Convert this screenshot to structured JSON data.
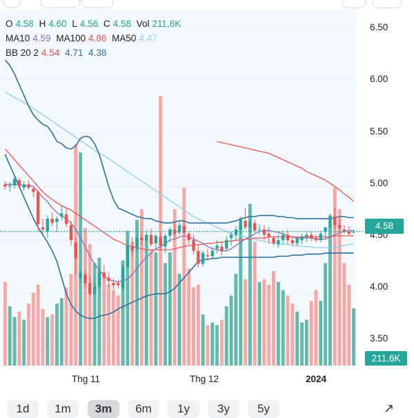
{
  "header": {
    "legend_ohlc": {
      "o_label": "O",
      "o_value": "4.58",
      "h_label": "H",
      "h_value": "4.60",
      "l_label": "L",
      "l_value": "4.56",
      "c_label": "C",
      "c_value": "4.58",
      "vol_label": "Vol",
      "vol_value": "211,6K"
    },
    "legend_ma": {
      "ma10_label": "MA10",
      "ma10_value": "4.59",
      "ma100_label": "MA100",
      "ma100_value": "4.86",
      "ma50_label": "MA50",
      "ma50_value": "4.47"
    },
    "legend_bb": {
      "bb_label": "BB 20 2",
      "bb_mid": "4.54",
      "bb_upper": "4.71",
      "bb_lower": "4.38"
    }
  },
  "badges": {
    "last_price": "4.58",
    "last_volume": "211.6K"
  },
  "range_buttons": [
    "1d",
    "1m",
    "3m",
    "6m",
    "1y",
    "3y",
    "5y"
  ],
  "selected_range": "3m",
  "icons": [
    "expand-icon"
  ],
  "colors": {
    "up": "#26a69a",
    "down": "#ef5350",
    "vol_up": "#5bb5a8",
    "vol_down": "#f4a3a0",
    "ma10": "#8e6bbf",
    "ma100": "#ef5350",
    "ma50": "#8fd0ec",
    "bb": "#2f6f9f"
  },
  "chart_data": {
    "type": "candlestick",
    "y_ticks": [
      "6.50",
      "6.00",
      "5.50",
      "5.00",
      "4.50",
      "4.00",
      "3.50"
    ],
    "ylim": [
      3.33,
      6.65
    ],
    "x_ticks": [
      {
        "label": "Thg 11",
        "index": 17
      },
      {
        "label": "Thg 12",
        "index": 44
      },
      {
        "label": "2024",
        "index": 70
      }
    ],
    "last_price": 4.58,
    "ohlc": [
      [
        5.02,
        5.05,
        4.97,
        5.0
      ],
      [
        5.0,
        5.04,
        4.95,
        5.01
      ],
      [
        5.01,
        5.1,
        4.98,
        5.07
      ],
      [
        5.06,
        5.08,
        4.98,
        5.0
      ],
      [
        4.99,
        5.05,
        4.96,
        5.02
      ],
      [
        5.02,
        5.06,
        4.97,
        4.99
      ],
      [
        4.98,
        5.0,
        4.9,
        4.95
      ],
      [
        4.95,
        4.97,
        4.58,
        4.65
      ],
      [
        4.62,
        4.7,
        4.55,
        4.6
      ],
      [
        4.58,
        4.73,
        4.52,
        4.7
      ],
      [
        4.7,
        4.76,
        4.63,
        4.66
      ],
      [
        4.67,
        4.72,
        4.58,
        4.7
      ],
      [
        4.72,
        4.82,
        4.68,
        4.75
      ],
      [
        4.74,
        4.8,
        4.62,
        4.65
      ],
      [
        4.64,
        4.68,
        4.45,
        4.5
      ],
      [
        4.48,
        4.52,
        4.18,
        4.33
      ],
      [
        4.15,
        4.22,
        4.1,
        4.2
      ],
      [
        4.18,
        4.22,
        4.05,
        4.1
      ],
      [
        4.1,
        4.16,
        3.98,
        4.0
      ],
      [
        4.0,
        4.1,
        3.98,
        4.07
      ],
      [
        4.07,
        4.23,
        4.04,
        4.2
      ],
      [
        4.2,
        4.27,
        4.13,
        4.15
      ],
      [
        4.15,
        4.2,
        4.07,
        4.12
      ],
      [
        4.1,
        4.14,
        4.04,
        4.08
      ],
      [
        4.1,
        4.13,
        4.05,
        4.08
      ],
      [
        4.05,
        4.27,
        4.03,
        4.25
      ],
      [
        4.25,
        4.5,
        4.22,
        4.45
      ],
      [
        4.44,
        4.53,
        4.35,
        4.4
      ],
      [
        4.42,
        4.55,
        4.4,
        4.52
      ],
      [
        4.52,
        4.57,
        4.45,
        4.5
      ],
      [
        4.5,
        4.6,
        4.45,
        4.55
      ],
      [
        4.55,
        4.61,
        4.44,
        4.46
      ],
      [
        4.47,
        4.56,
        4.42,
        4.54
      ],
      [
        4.53,
        4.57,
        4.42,
        4.45
      ],
      [
        4.44,
        4.56,
        4.38,
        4.54
      ],
      [
        4.54,
        4.62,
        4.48,
        4.6
      ],
      [
        4.6,
        4.66,
        4.53,
        4.56
      ],
      [
        4.57,
        4.67,
        4.55,
        4.64
      ],
      [
        4.63,
        4.67,
        4.55,
        4.57
      ],
      [
        4.56,
        4.58,
        4.46,
        4.5
      ],
      [
        4.5,
        4.55,
        4.37,
        4.4
      ],
      [
        4.4,
        4.46,
        4.24,
        4.28
      ],
      [
        4.28,
        4.4,
        4.25,
        4.38
      ],
      [
        4.36,
        4.42,
        4.31,
        4.35
      ],
      [
        4.35,
        4.44,
        4.32,
        4.4
      ],
      [
        4.42,
        4.5,
        4.38,
        4.45
      ],
      [
        4.44,
        4.49,
        4.36,
        4.4
      ],
      [
        4.42,
        4.54,
        4.4,
        4.5
      ],
      [
        4.52,
        4.58,
        4.45,
        4.55
      ],
      [
        4.55,
        4.63,
        4.5,
        4.6
      ],
      [
        4.6,
        4.72,
        4.56,
        4.7
      ],
      [
        4.68,
        4.8,
        4.6,
        4.62
      ],
      [
        4.62,
        4.7,
        4.57,
        4.67
      ],
      [
        4.66,
        4.69,
        4.57,
        4.59
      ],
      [
        4.6,
        4.65,
        4.55,
        4.6
      ],
      [
        4.6,
        4.64,
        4.5,
        4.55
      ],
      [
        4.56,
        4.62,
        4.47,
        4.53
      ],
      [
        4.52,
        4.54,
        4.45,
        4.47
      ],
      [
        4.46,
        4.55,
        4.43,
        4.5
      ],
      [
        4.5,
        4.58,
        4.46,
        4.55
      ],
      [
        4.55,
        4.6,
        4.46,
        4.5
      ],
      [
        4.5,
        4.54,
        4.45,
        4.47
      ],
      [
        4.47,
        4.53,
        4.44,
        4.52
      ],
      [
        4.5,
        4.56,
        4.46,
        4.53
      ],
      [
        4.53,
        4.58,
        4.48,
        4.55
      ],
      [
        4.55,
        4.58,
        4.49,
        4.52
      ],
      [
        4.52,
        4.55,
        4.48,
        4.5
      ],
      [
        4.5,
        4.58,
        4.48,
        4.56
      ],
      [
        4.58,
        4.62,
        4.52,
        4.62
      ],
      [
        4.62,
        4.75,
        4.6,
        4.73
      ],
      [
        4.72,
        4.8,
        4.6,
        4.64
      ],
      [
        4.64,
        4.7,
        4.58,
        4.61
      ],
      [
        4.6,
        4.64,
        4.56,
        4.58
      ],
      [
        4.58,
        4.63,
        4.55,
        4.56
      ],
      [
        4.58,
        4.6,
        4.56,
        4.58
      ]
    ],
    "volume_max_k": 1100,
    "volume_k": [
      310,
      220,
      180,
      200,
      170,
      230,
      270,
      300,
      210,
      180,
      190,
      230,
      250,
      290,
      340,
      820,
      790,
      510,
      450,
      380,
      400,
      340,
      300,
      280,
      260,
      390,
      500,
      460,
      540,
      580,
      470,
      430,
      420,
      1000,
      380,
      420,
      580,
      340,
      660,
      360,
      290,
      300,
      190,
      150,
      160,
      150,
      170,
      220,
      260,
      340,
      520,
      320,
      600,
      460,
      310,
      320,
      300,
      350,
      310,
      280,
      260,
      230,
      200,
      160,
      170,
      240,
      280,
      240,
      380,
      520,
      660,
      580,
      380,
      300,
      212
    ],
    "series": [
      {
        "name": "MA10",
        "values": [
          5.02,
          5.02,
          5.02,
          5.02,
          5.01,
          5.01,
          5.0,
          4.95,
          4.9,
          4.86,
          4.8,
          4.76,
          4.72,
          4.7,
          4.66,
          4.6,
          4.52,
          4.44,
          4.35,
          4.28,
          4.22,
          4.17,
          4.13,
          4.12,
          4.11,
          4.12,
          4.14,
          4.18,
          4.24,
          4.29,
          4.34,
          4.38,
          4.42,
          4.44,
          4.47,
          4.5,
          4.51,
          4.53,
          4.54,
          4.53,
          4.51,
          4.49,
          4.47,
          4.44,
          4.42,
          4.41,
          4.4,
          4.4,
          4.42,
          4.45,
          4.48,
          4.51,
          4.53,
          4.56,
          4.58,
          4.59,
          4.59,
          4.58,
          4.57,
          4.56,
          4.54,
          4.53,
          4.52,
          4.52,
          4.52,
          4.52,
          4.51,
          4.51,
          4.51,
          4.53,
          4.55,
          4.57,
          4.58,
          4.59,
          4.59
        ]
      },
      {
        "name": "MA100",
        "values": [
          null,
          null,
          null,
          null,
          null,
          null,
          null,
          null,
          null,
          null,
          null,
          null,
          null,
          null,
          null,
          null,
          null,
          null,
          null,
          null,
          null,
          null,
          null,
          null,
          null,
          null,
          null,
          null,
          null,
          null,
          null,
          null,
          null,
          null,
          null,
          null,
          null,
          null,
          null,
          null,
          null,
          null,
          null,
          null,
          null,
          5.42,
          5.41,
          5.4,
          5.39,
          5.38,
          5.37,
          5.36,
          5.35,
          5.34,
          5.33,
          5.32,
          5.31,
          5.29,
          5.27,
          5.25,
          5.23,
          5.21,
          5.19,
          5.17,
          5.14,
          5.12,
          5.1,
          5.08,
          5.06,
          5.03,
          5.0,
          4.97,
          4.93,
          4.9,
          4.86
        ]
      },
      {
        "name": "MA50",
        "values": [
          5.88,
          5.86,
          5.83,
          5.81,
          5.78,
          5.76,
          5.73,
          5.7,
          5.67,
          5.64,
          5.61,
          5.58,
          5.55,
          5.52,
          5.49,
          5.46,
          5.43,
          5.4,
          5.37,
          5.34,
          5.31,
          5.29,
          5.26,
          5.23,
          5.2,
          5.17,
          5.14,
          5.11,
          5.08,
          5.05,
          5.02,
          4.99,
          4.96,
          4.93,
          4.9,
          4.87,
          4.84,
          4.81,
          4.78,
          4.75,
          4.72,
          4.7,
          4.68,
          4.66,
          4.64,
          4.62,
          4.6,
          4.58,
          4.56,
          4.55,
          4.54,
          4.53,
          4.52,
          4.51,
          4.5,
          4.49,
          4.48,
          4.47,
          4.47,
          4.46,
          4.46,
          4.45,
          4.45,
          4.44,
          4.44,
          4.44,
          4.43,
          4.43,
          4.43,
          4.43,
          4.43,
          4.44,
          4.45,
          4.46,
          4.47
        ]
      },
      {
        "name": "BB upper",
        "values": [
          6.18,
          6.13,
          6.05,
          5.95,
          5.85,
          5.75,
          5.67,
          5.62,
          5.58,
          5.56,
          5.5,
          5.42,
          5.4,
          5.36,
          5.35,
          5.38,
          5.45,
          5.47,
          5.46,
          5.4,
          5.3,
          5.15,
          5.0,
          4.88,
          4.8,
          4.78,
          4.76,
          4.74,
          4.72,
          4.71,
          4.7,
          4.7,
          4.68,
          4.67,
          4.66,
          4.66,
          4.67,
          4.68,
          4.68,
          4.66,
          4.66,
          4.66,
          4.66,
          4.66,
          4.66,
          4.66,
          4.66,
          4.66,
          4.67,
          4.68,
          4.7,
          4.71,
          4.72,
          4.72,
          4.73,
          4.73,
          4.73,
          4.73,
          4.72,
          4.72,
          4.71,
          4.71,
          4.7,
          4.7,
          4.7,
          4.7,
          4.7,
          4.7,
          4.7,
          4.7,
          4.71,
          4.72,
          4.72,
          4.71,
          4.71
        ]
      },
      {
        "name": "BB middle",
        "values": [
          5.35,
          5.3,
          5.25,
          5.2,
          5.15,
          5.1,
          5.05,
          5.0,
          4.95,
          4.91,
          4.88,
          4.85,
          4.82,
          4.8,
          4.78,
          4.75,
          4.72,
          4.69,
          4.66,
          4.63,
          4.6,
          4.57,
          4.54,
          4.51,
          4.49,
          4.47,
          4.45,
          4.44,
          4.43,
          4.42,
          4.41,
          4.41,
          4.41,
          4.41,
          4.41,
          4.41,
          4.42,
          4.43,
          4.44,
          4.45,
          4.45,
          4.46,
          4.46,
          4.47,
          4.47,
          4.48,
          4.48,
          4.49,
          4.49,
          4.5,
          4.5,
          4.51,
          4.51,
          4.52,
          4.52,
          4.52,
          4.53,
          4.53,
          4.53,
          4.53,
          4.53,
          4.53,
          4.53,
          4.53,
          4.53,
          4.53,
          4.53,
          4.53,
          4.53,
          4.53,
          4.54,
          4.54,
          4.54,
          4.54,
          4.54
        ]
      },
      {
        "name": "BB lower",
        "values": [
          5.3,
          5.2,
          5.1,
          5.0,
          4.9,
          4.8,
          4.7,
          4.62,
          4.55,
          4.48,
          4.4,
          4.3,
          4.15,
          4.0,
          3.9,
          3.84,
          3.8,
          3.78,
          3.77,
          3.77,
          3.79,
          3.8,
          3.81,
          3.83,
          3.86,
          3.88,
          3.9,
          3.92,
          3.94,
          3.96,
          3.98,
          3.99,
          4.0,
          4.0,
          4.0,
          4.02,
          4.05,
          4.1,
          4.15,
          4.2,
          4.25,
          4.3,
          4.32,
          4.32,
          4.33,
          4.33,
          4.34,
          4.34,
          4.34,
          4.34,
          4.34,
          4.34,
          4.34,
          4.34,
          4.34,
          4.34,
          4.34,
          4.34,
          4.35,
          4.35,
          4.35,
          4.36,
          4.36,
          4.36,
          4.37,
          4.37,
          4.37,
          4.37,
          4.38,
          4.38,
          4.38,
          4.38,
          4.38,
          4.38,
          4.38
        ]
      }
    ]
  }
}
